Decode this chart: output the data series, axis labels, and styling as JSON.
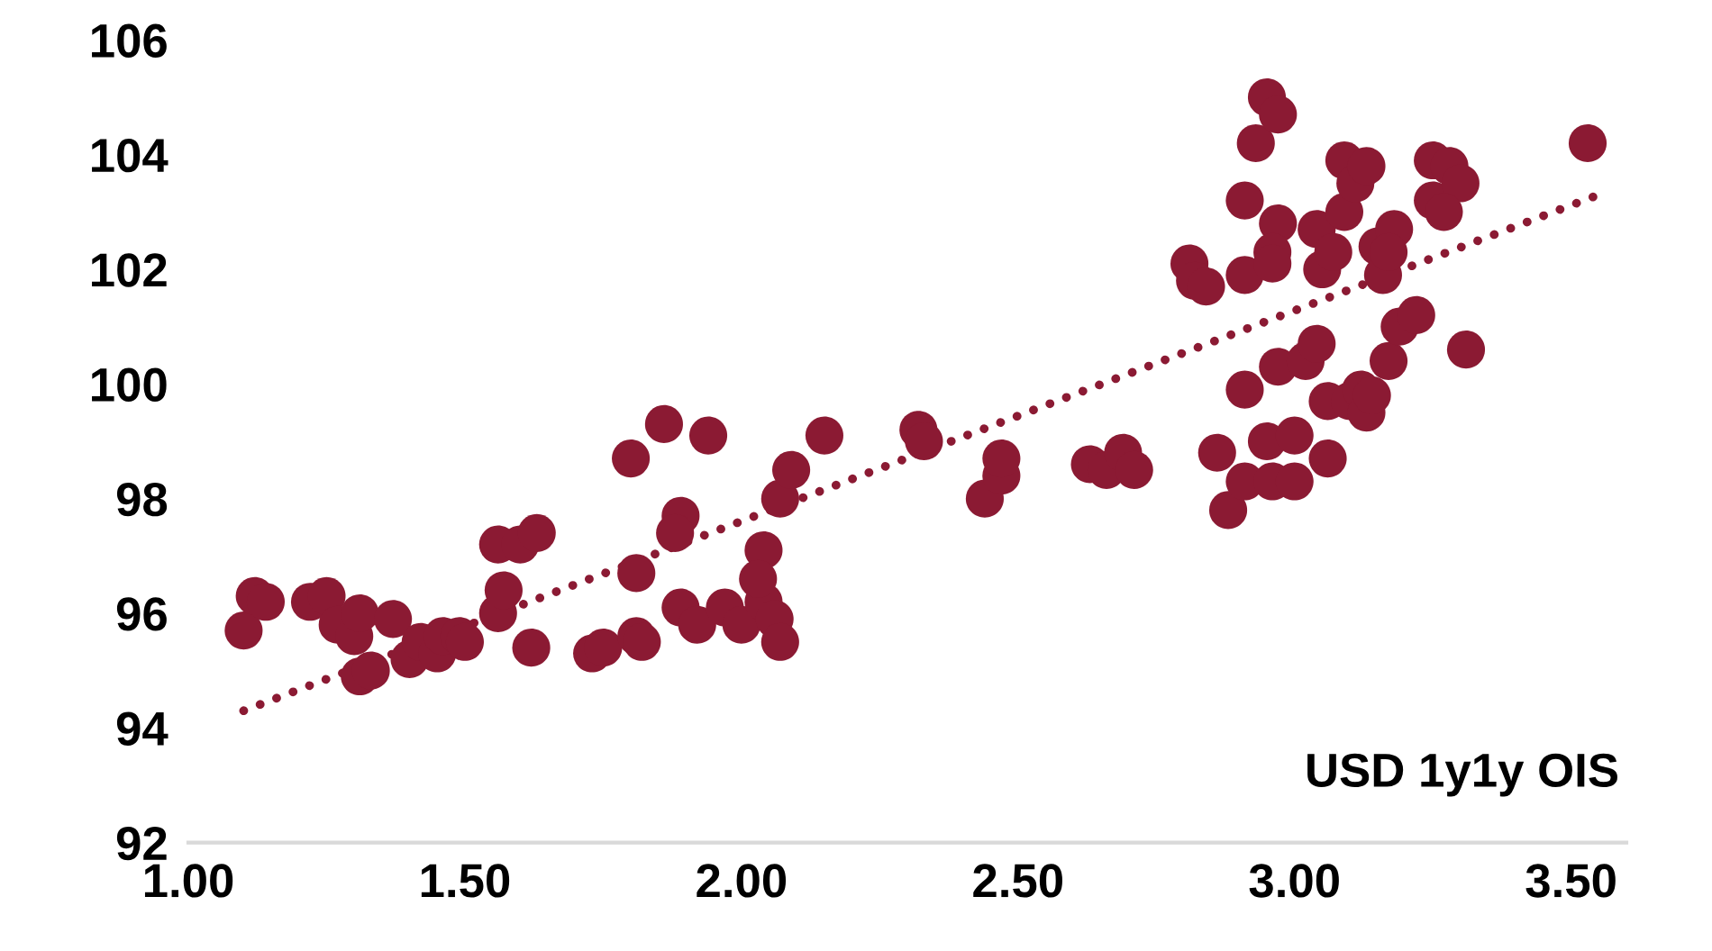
{
  "chart_data": {
    "type": "scatter",
    "xlim": [
      1.0,
      3.6
    ],
    "ylim": [
      92,
      106
    ],
    "xticks": [
      {
        "value": 1.0,
        "label": "1.00"
      },
      {
        "value": 1.5,
        "label": "1.50"
      },
      {
        "value": 2.0,
        "label": "2.00"
      },
      {
        "value": 2.5,
        "label": "2.50"
      },
      {
        "value": 3.0,
        "label": "3.00"
      },
      {
        "value": 3.5,
        "label": "3.50"
      }
    ],
    "yticks": [
      92,
      94,
      96,
      98,
      100,
      102,
      104,
      106
    ],
    "grid": false,
    "legend": false,
    "annotations": [
      "USD 1y1y OIS"
    ],
    "series": [
      {
        "color": "#8b1a33",
        "marker": "circle",
        "x": [
          1.1,
          1.12,
          1.14,
          1.22,
          1.25,
          1.27,
          1.3,
          1.31,
          1.31,
          1.33,
          1.37,
          1.4,
          1.42,
          1.45,
          1.46,
          1.49,
          1.5,
          1.56,
          1.57,
          1.56,
          1.6,
          1.63,
          1.62,
          1.73,
          1.75,
          1.81,
          1.82,
          1.81,
          1.8,
          1.86,
          1.94,
          1.89,
          1.88,
          1.89,
          1.92,
          1.97,
          2.0,
          2.04,
          2.04,
          2.03,
          2.06,
          2.07,
          2.07,
          2.09,
          2.15,
          2.32,
          2.33,
          2.44,
          2.47,
          2.47,
          2.63,
          2.66,
          2.69,
          2.71,
          2.86,
          2.88,
          2.91,
          2.96,
          2.95,
          3.0,
          3.0,
          3.06,
          2.91,
          2.97,
          3.02,
          3.04,
          3.06,
          3.1,
          3.12,
          3.13,
          3.14,
          3.17,
          3.19,
          3.22,
          3.31,
          2.81,
          2.82,
          2.84,
          2.91,
          2.91,
          2.93,
          2.95,
          2.97,
          2.97,
          2.96,
          2.96,
          3.04,
          3.05,
          3.07,
          3.09,
          3.09,
          3.11,
          3.13,
          3.15,
          3.16,
          3.18,
          3.17,
          3.25,
          3.25,
          3.28,
          3.3,
          3.27,
          3.53
        ],
        "values": [
          95.7,
          96.3,
          96.2,
          96.2,
          96.3,
          95.8,
          95.6,
          96.0,
          94.9,
          95.0,
          95.9,
          95.2,
          95.5,
          95.3,
          95.6,
          95.6,
          95.5,
          96.0,
          96.4,
          97.2,
          97.2,
          97.4,
          95.4,
          95.3,
          95.4,
          95.6,
          95.5,
          96.7,
          98.7,
          99.3,
          99.1,
          97.7,
          97.4,
          96.1,
          95.8,
          96.1,
          95.8,
          96.2,
          97.1,
          96.6,
          95.9,
          95.5,
          98.0,
          98.5,
          99.1,
          99.2,
          99.0,
          98.0,
          98.4,
          98.7,
          98.6,
          98.5,
          98.8,
          98.5,
          98.8,
          97.8,
          98.3,
          98.3,
          99.0,
          99.1,
          98.3,
          98.7,
          99.9,
          100.3,
          100.4,
          100.7,
          99.7,
          99.7,
          99.9,
          99.5,
          99.8,
          100.4,
          101.0,
          101.2,
          100.6,
          102.1,
          101.8,
          101.7,
          101.9,
          103.2,
          104.2,
          105.0,
          104.7,
          102.8,
          102.3,
          102.1,
          102.7,
          102.0,
          102.3,
          103.9,
          103.0,
          103.5,
          103.8,
          102.4,
          101.9,
          102.7,
          102.3,
          103.2,
          103.9,
          103.8,
          103.5,
          103.0,
          104.2
        ]
      },
      {
        "type": "line",
        "color": "#8b1a33",
        "line_style": "dotted",
        "x": [
          1.1,
          3.55
        ],
        "values": [
          94.3,
          103.3
        ]
      }
    ]
  }
}
